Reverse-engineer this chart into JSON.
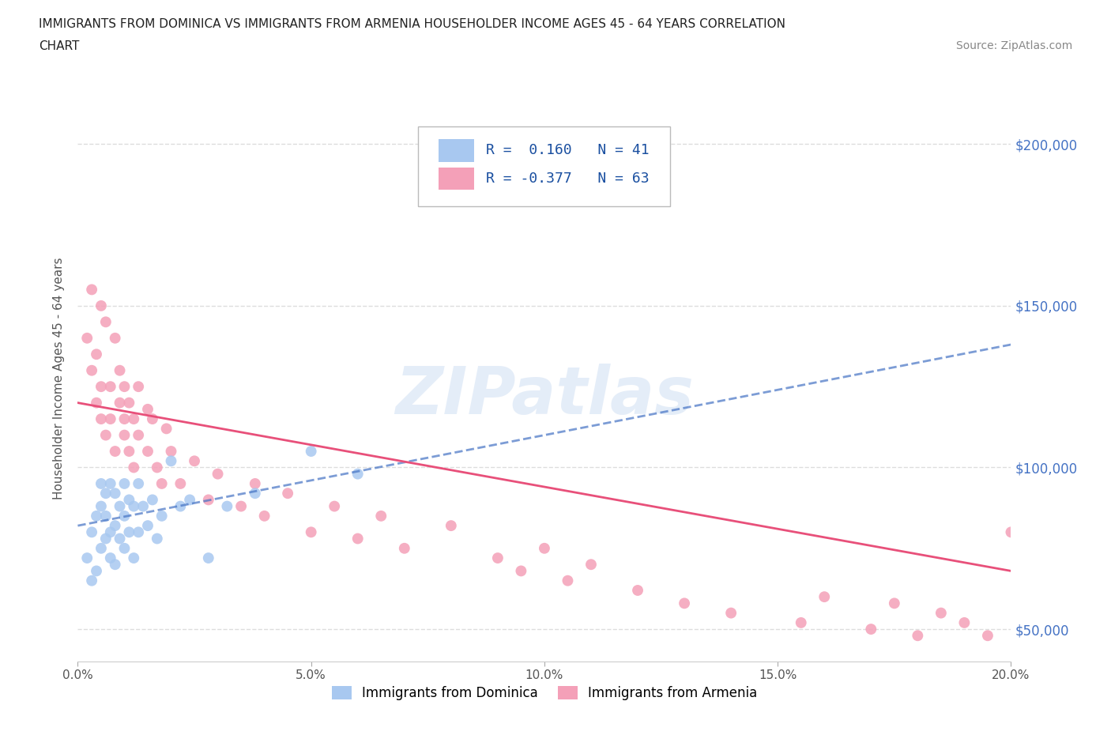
{
  "title_line1": "IMMIGRANTS FROM DOMINICA VS IMMIGRANTS FROM ARMENIA HOUSEHOLDER INCOME AGES 45 - 64 YEARS CORRELATION",
  "title_line2": "CHART",
  "source_text": "Source: ZipAtlas.com",
  "ylabel": "Householder Income Ages 45 - 64 years",
  "xlim": [
    0.0,
    0.2
  ],
  "ylim": [
    40000,
    215000
  ],
  "yticks": [
    50000,
    100000,
    150000,
    200000
  ],
  "ytick_labels": [
    "$50,000",
    "$100,000",
    "$150,000",
    "$200,000"
  ],
  "xticks": [
    0.0,
    0.05,
    0.1,
    0.15,
    0.2
  ],
  "xtick_labels": [
    "0.0%",
    "5.0%",
    "10.0%",
    "15.0%",
    "20.0%"
  ],
  "dominica_color": "#a8c8f0",
  "armenia_color": "#f4a0b8",
  "dominica_line_color": "#4472c4",
  "armenia_line_color": "#e8507a",
  "legend_R_dominica": "0.160",
  "legend_N_dominica": "41",
  "legend_R_armenia": "-0.377",
  "legend_N_armenia": "63",
  "watermark": "ZIPatlas",
  "background_color": "#ffffff",
  "grid_color": "#dddddd",
  "dominica_x": [
    0.002,
    0.003,
    0.003,
    0.004,
    0.004,
    0.005,
    0.005,
    0.005,
    0.006,
    0.006,
    0.006,
    0.007,
    0.007,
    0.007,
    0.008,
    0.008,
    0.008,
    0.009,
    0.009,
    0.01,
    0.01,
    0.01,
    0.011,
    0.011,
    0.012,
    0.012,
    0.013,
    0.013,
    0.014,
    0.015,
    0.016,
    0.017,
    0.018,
    0.02,
    0.022,
    0.024,
    0.028,
    0.032,
    0.038,
    0.05,
    0.06
  ],
  "dominica_y": [
    72000,
    65000,
    80000,
    68000,
    85000,
    75000,
    88000,
    95000,
    78000,
    85000,
    92000,
    72000,
    80000,
    95000,
    70000,
    82000,
    92000,
    78000,
    88000,
    75000,
    85000,
    95000,
    80000,
    90000,
    72000,
    88000,
    80000,
    95000,
    88000,
    82000,
    90000,
    78000,
    85000,
    102000,
    88000,
    90000,
    72000,
    88000,
    92000,
    105000,
    98000
  ],
  "armenia_x": [
    0.002,
    0.003,
    0.003,
    0.004,
    0.004,
    0.005,
    0.005,
    0.005,
    0.006,
    0.006,
    0.007,
    0.007,
    0.008,
    0.008,
    0.009,
    0.009,
    0.01,
    0.01,
    0.01,
    0.011,
    0.011,
    0.012,
    0.012,
    0.013,
    0.013,
    0.015,
    0.015,
    0.016,
    0.017,
    0.018,
    0.019,
    0.02,
    0.022,
    0.025,
    0.028,
    0.03,
    0.035,
    0.038,
    0.04,
    0.045,
    0.05,
    0.055,
    0.06,
    0.065,
    0.07,
    0.08,
    0.09,
    0.095,
    0.1,
    0.105,
    0.11,
    0.12,
    0.13,
    0.14,
    0.155,
    0.16,
    0.17,
    0.175,
    0.18,
    0.185,
    0.19,
    0.195,
    0.2
  ],
  "armenia_y": [
    140000,
    155000,
    130000,
    120000,
    135000,
    150000,
    125000,
    115000,
    145000,
    110000,
    125000,
    115000,
    140000,
    105000,
    130000,
    120000,
    110000,
    125000,
    115000,
    105000,
    120000,
    115000,
    100000,
    125000,
    110000,
    118000,
    105000,
    115000,
    100000,
    95000,
    112000,
    105000,
    95000,
    102000,
    90000,
    98000,
    88000,
    95000,
    85000,
    92000,
    80000,
    88000,
    78000,
    85000,
    75000,
    82000,
    72000,
    68000,
    75000,
    65000,
    70000,
    62000,
    58000,
    55000,
    52000,
    60000,
    50000,
    58000,
    48000,
    55000,
    52000,
    48000,
    80000
  ],
  "dom_trend_x": [
    0.0,
    0.2
  ],
  "dom_trend_y": [
    82000,
    138000
  ],
  "arm_trend_x": [
    0.0,
    0.2
  ],
  "arm_trend_y": [
    120000,
    68000
  ]
}
